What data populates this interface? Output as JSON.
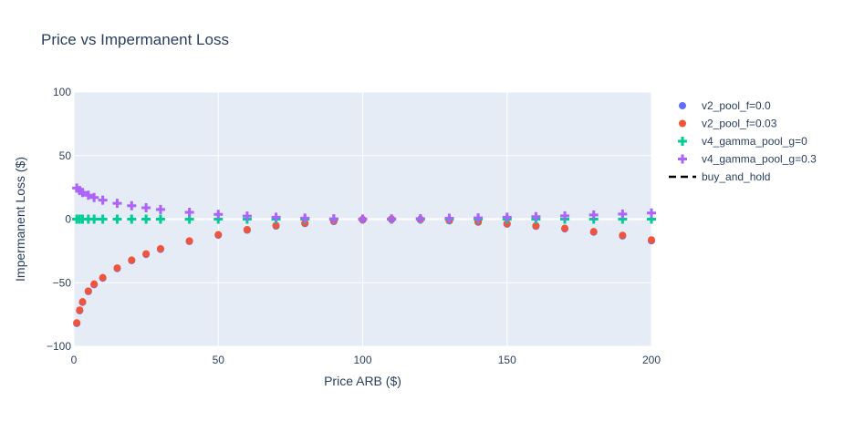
{
  "chart_data": {
    "type": "scatter",
    "title": "Price vs Impermanent Loss",
    "xlabel": "Price ARB ($)",
    "ylabel": "Impermanent Loss ($)",
    "xlim": [
      0,
      200
    ],
    "ylim": [
      -100,
      100
    ],
    "x_ticks": [
      "0",
      "50",
      "100",
      "150",
      "200"
    ],
    "y_ticks": [
      "100",
      "50",
      "0",
      "−50",
      "−100"
    ],
    "grid": true,
    "legend_position": "top-right",
    "plot_background": "#e5ecf6",
    "x": [
      1,
      2,
      3,
      5,
      7,
      10,
      15,
      20,
      25,
      30,
      40,
      50,
      60,
      70,
      80,
      90,
      100,
      110,
      120,
      130,
      140,
      150,
      160,
      170,
      180,
      190,
      200
    ],
    "series": [
      {
        "name": "v2_pool_f=0.0",
        "marker": "circle",
        "color": "#636efa",
        "values": [
          -82,
          -72,
          -65.4,
          -56.9,
          -51.5,
          -46.4,
          -38.8,
          -32.6,
          -27.7,
          -23.7,
          -17.5,
          -12.6,
          -8.6,
          -5.4,
          -3.4,
          -1.8,
          -0.6,
          -0.2,
          -0.5,
          -1.3,
          -2.4,
          -3.9,
          -5.6,
          -7.6,
          -10.2,
          -13.2,
          -17
        ]
      },
      {
        "name": "v2_pool_f=0.03",
        "marker": "circle",
        "color": "#ef553b",
        "values": [
          -81.5,
          -71.5,
          -65,
          -56.5,
          -51,
          -46,
          -38.4,
          -32.2,
          -27.3,
          -23.3,
          -17.1,
          -12.2,
          -8.2,
          -5.0,
          -3.0,
          -1.4,
          -0.2,
          0.1,
          -0.2,
          -1.0,
          -2.0,
          -3.5,
          -5.2,
          -7.2,
          -9.8,
          -12.7,
          -16.3
        ]
      },
      {
        "name": "v4_gamma_pool_g=0",
        "marker": "plus",
        "color": "#00cc96",
        "values": [
          0,
          0,
          0,
          0,
          0,
          0,
          0,
          0,
          0,
          0,
          0,
          0,
          0,
          0,
          0,
          0,
          0,
          0,
          0,
          0,
          0,
          0,
          0,
          0,
          0,
          0,
          0
        ]
      },
      {
        "name": "v4_gamma_pool_g=0.3",
        "marker": "plus",
        "color": "#ab63fa",
        "values": [
          24.5,
          22.5,
          21,
          18.8,
          17,
          15,
          12.5,
          10.6,
          9,
          7.6,
          5.4,
          3.8,
          2.4,
          1.5,
          0.8,
          0.3,
          0.1,
          0.2,
          0.4,
          0.7,
          1.0,
          1.5,
          2.0,
          2.6,
          3.3,
          4.0,
          4.8
        ]
      },
      {
        "name": "buy_and_hold",
        "marker": "dash-line",
        "color": "#000000",
        "values": []
      }
    ]
  }
}
